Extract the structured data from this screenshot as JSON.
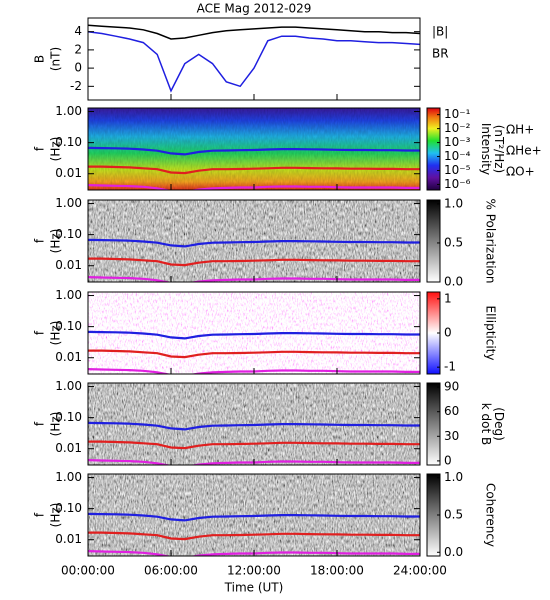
{
  "chart_data": [
    {
      "type": "line",
      "title": "ACE Mag 2012-029",
      "ylabel": [
        "B",
        "(nT)"
      ],
      "x": [
        0,
        1,
        2,
        3,
        4,
        5,
        6,
        7,
        8,
        9,
        10,
        11,
        12,
        13,
        14,
        15,
        16,
        17,
        18,
        19,
        20,
        21,
        22,
        23,
        24
      ],
      "xlim": [
        0,
        24
      ],
      "ylim": [
        -3.5,
        5.5
      ],
      "yticks": [
        -2,
        0,
        2,
        4
      ],
      "series": [
        {
          "name": "|B|",
          "color": "#000000",
          "values": [
            4.7,
            4.6,
            4.5,
            4.4,
            4.2,
            3.8,
            3.2,
            3.3,
            3.6,
            3.9,
            4.1,
            4.2,
            4.3,
            4.4,
            4.5,
            4.5,
            4.4,
            4.3,
            4.2,
            4.1,
            4.0,
            4.0,
            3.9,
            3.9,
            3.8
          ]
        },
        {
          "name": "BR",
          "color": "#1f1fe0",
          "values": [
            4.0,
            3.8,
            3.5,
            3.2,
            2.8,
            1.5,
            -2.5,
            0.5,
            1.5,
            0.5,
            -1.5,
            -2.0,
            0.0,
            3.0,
            3.5,
            3.5,
            3.3,
            3.2,
            3.0,
            3.0,
            2.9,
            2.8,
            2.8,
            2.7,
            2.6
          ]
        }
      ]
    },
    {
      "type": "spectrogram",
      "ylabel": [
        "f",
        "(Hz)"
      ],
      "log_y": true,
      "ylim": [
        0.003,
        1.3
      ],
      "yticks": [
        {
          "value": 1,
          "label": "1.00"
        },
        {
          "value": 0.1,
          "label": "0.10"
        },
        {
          "value": 0.01,
          "label": "0.01"
        }
      ],
      "x": [
        0,
        1,
        2,
        3,
        4,
        5,
        6,
        7,
        8,
        9,
        10,
        11,
        12,
        13,
        14,
        15,
        16,
        17,
        18,
        19,
        20,
        21,
        22,
        23,
        24
      ],
      "xlim": [
        0,
        24
      ],
      "colormap": "rainbow",
      "colorbar_label": [
        "Intensity",
        "(nT²/Hz)"
      ],
      "clim": [
        4e-07,
        0.3
      ],
      "colorbar_log": true,
      "colorbar_ticks": [
        {
          "value": 0.1,
          "label": "10⁻¹"
        },
        {
          "value": 0.01,
          "label": "10⁻²"
        },
        {
          "value": 0.001,
          "label": "10⁻³"
        },
        {
          "value": 0.0001,
          "label": "10⁻⁴"
        },
        {
          "value": 1e-05,
          "label": "10⁻⁵"
        },
        {
          "value": 1e-06,
          "label": "10⁻⁶"
        }
      ],
      "series": [
        {
          "name": "ΩH+",
          "color": "#1f1fe0",
          "values": [
            0.068,
            0.067,
            0.066,
            0.064,
            0.06,
            0.055,
            0.045,
            0.042,
            0.05,
            0.055,
            0.056,
            0.057,
            0.058,
            0.06,
            0.062,
            0.062,
            0.061,
            0.06,
            0.059,
            0.058,
            0.058,
            0.057,
            0.057,
            0.056,
            0.056
          ]
        },
        {
          "name": "ΩHe+",
          "color": "#e01f1f",
          "values": [
            0.017,
            0.017,
            0.0165,
            0.016,
            0.015,
            0.014,
            0.011,
            0.0105,
            0.0125,
            0.014,
            0.014,
            0.0142,
            0.0145,
            0.015,
            0.0155,
            0.0155,
            0.0152,
            0.015,
            0.0148,
            0.0145,
            0.0145,
            0.0143,
            0.0143,
            0.014,
            0.014
          ]
        },
        {
          "name": "ΩO+",
          "color": "#e020e0",
          "values": [
            0.0043,
            0.0042,
            0.0041,
            0.004,
            0.0038,
            0.0034,
            0.0028,
            0.0026,
            0.0031,
            0.0034,
            0.0035,
            0.0036,
            0.0036,
            0.0038,
            0.0039,
            0.0039,
            0.0038,
            0.0038,
            0.0037,
            0.0036,
            0.0036,
            0.0036,
            0.0036,
            0.0035,
            0.0035
          ]
        }
      ]
    },
    {
      "type": "spectrogram",
      "ylabel": [
        "f",
        "(Hz)"
      ],
      "log_y": true,
      "ylim": [
        0.003,
        1.3
      ],
      "yticks": [
        {
          "value": 1,
          "label": "1.00"
        },
        {
          "value": 0.1,
          "label": "0.10"
        },
        {
          "value": 0.01,
          "label": "0.01"
        }
      ],
      "colormap": "gray",
      "colorbar_label": [
        "% Polarization"
      ],
      "clim": [
        0,
        1.05
      ],
      "colorbar_ticks": [
        {
          "value": 1,
          "label": "1.0"
        },
        {
          "value": 0.5,
          "label": "0.5"
        },
        {
          "value": 0,
          "label": "0.0"
        }
      ]
    },
    {
      "type": "spectrogram",
      "ylabel": [
        "f",
        "(Hz)"
      ],
      "log_y": true,
      "ylim": [
        0.003,
        1.3
      ],
      "yticks": [
        {
          "value": 1,
          "label": "1.00"
        },
        {
          "value": 0.1,
          "label": "0.10"
        },
        {
          "value": 0.01,
          "label": "0.01"
        }
      ],
      "colormap": "bwr",
      "colorbar_label": [
        "Ellipticity"
      ],
      "clim": [
        -1.2,
        1.2
      ],
      "colorbar_ticks": [
        1,
        0,
        -1
      ]
    },
    {
      "type": "spectrogram",
      "ylabel": [
        "f",
        "(Hz)"
      ],
      "log_y": true,
      "ylim": [
        0.003,
        1.3
      ],
      "yticks": [
        {
          "value": 1,
          "label": "1.00"
        },
        {
          "value": 0.1,
          "label": "0.10"
        },
        {
          "value": 0.01,
          "label": "0.01"
        }
      ],
      "colormap": "gray",
      "colorbar_label": [
        "k dot B",
        "(Deg)"
      ],
      "clim": [
        -5,
        95
      ],
      "colorbar_ticks": [
        90,
        60,
        30,
        0
      ]
    },
    {
      "type": "spectrogram",
      "ylabel": [
        "f",
        "(Hz)"
      ],
      "log_y": true,
      "ylim": [
        0.003,
        1.3
      ],
      "yticks": [
        {
          "value": 1,
          "label": "1.00"
        },
        {
          "value": 0.1,
          "label": "0.10"
        },
        {
          "value": 0.01,
          "label": "0.01"
        }
      ],
      "colormap": "gray",
      "colorbar_label": [
        "Coherency"
      ],
      "clim": [
        -0.05,
        1.05
      ],
      "colorbar_ticks": [
        {
          "value": 1,
          "label": "1.0"
        },
        {
          "value": 0.5,
          "label": "0.5"
        },
        {
          "value": 0,
          "label": "0.0"
        }
      ],
      "xlabel": "Time (UT)",
      "xticks": [
        {
          "value": 0,
          "label": "00:00:00"
        },
        {
          "value": 6,
          "label": "06:00:00"
        },
        {
          "value": 12,
          "label": "12:00:00"
        },
        {
          "value": 18,
          "label": "18:00:00"
        },
        {
          "value": 24,
          "label": "24:00:00"
        }
      ]
    }
  ]
}
